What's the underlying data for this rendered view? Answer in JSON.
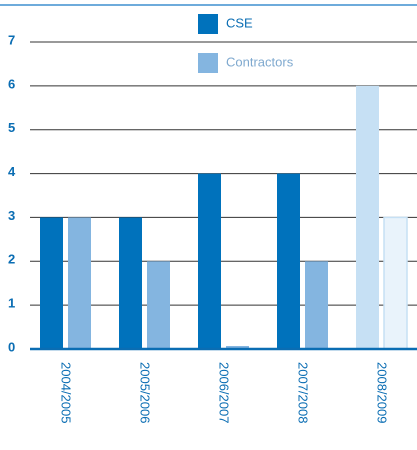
{
  "chart_data": {
    "type": "bar",
    "categories": [
      "2004/2005",
      "2005/2006",
      "2006/2007",
      "2007/2008",
      "2008/2009"
    ],
    "series": [
      {
        "name": "CSE",
        "color": "#0072bc",
        "colors": [
          "#0072bc",
          "#0072bc",
          "#0072bc",
          "#0072bc",
          "#c6e0f4"
        ],
        "values": [
          3,
          3,
          4,
          4,
          6
        ]
      },
      {
        "name": "Contractors",
        "color": "#84b5e0",
        "colors": [
          "#84b5e0",
          "#84b5e0",
          "#84b5e0",
          "#84b5e0",
          "#e9f3fb"
        ],
        "values": [
          3,
          2,
          0,
          2,
          3
        ]
      }
    ],
    "ylim": [
      0,
      7
    ],
    "yticks": [
      0,
      1,
      2,
      3,
      4,
      5,
      6,
      7
    ],
    "grid": true
  }
}
